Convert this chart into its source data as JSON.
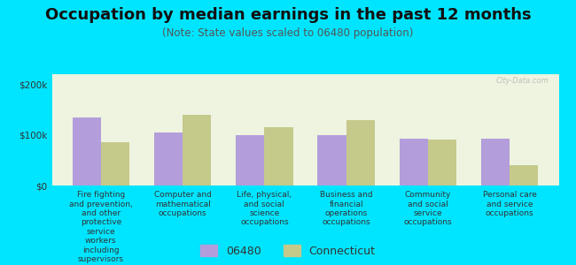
{
  "title": "Occupation by median earnings in the past 12 months",
  "subtitle": "(Note: State values scaled to 06480 population)",
  "categories": [
    "Fire fighting\nand prevention,\nand other\nprotective\nservice\nworkers\nincluding\nsupervisors",
    "Computer and\nmathematical\noccupations",
    "Life, physical,\nand social\nscience\noccupations",
    "Business and\nfinancial\noperations\noccupations",
    "Community\nand social\nservice\noccupations",
    "Personal care\nand service\noccupations"
  ],
  "values_06480": [
    135000,
    105000,
    100000,
    100000,
    92000,
    92000
  ],
  "values_connecticut": [
    85000,
    140000,
    115000,
    130000,
    90000,
    40000
  ],
  "color_06480": "#b39ddb",
  "color_connecticut": "#c5c98a",
  "bar_width": 0.35,
  "ylim": [
    0,
    220000
  ],
  "yticks": [
    0,
    100000,
    200000
  ],
  "ytick_labels": [
    "$0",
    "$100k",
    "$200k"
  ],
  "background_color": "#00e5ff",
  "plot_bg": "#eef4e0",
  "legend_labels": [
    "06480",
    "Connecticut"
  ],
  "title_fontsize": 13,
  "subtitle_fontsize": 8.5,
  "label_fontsize": 6.5,
  "ytick_fontsize": 7.5
}
